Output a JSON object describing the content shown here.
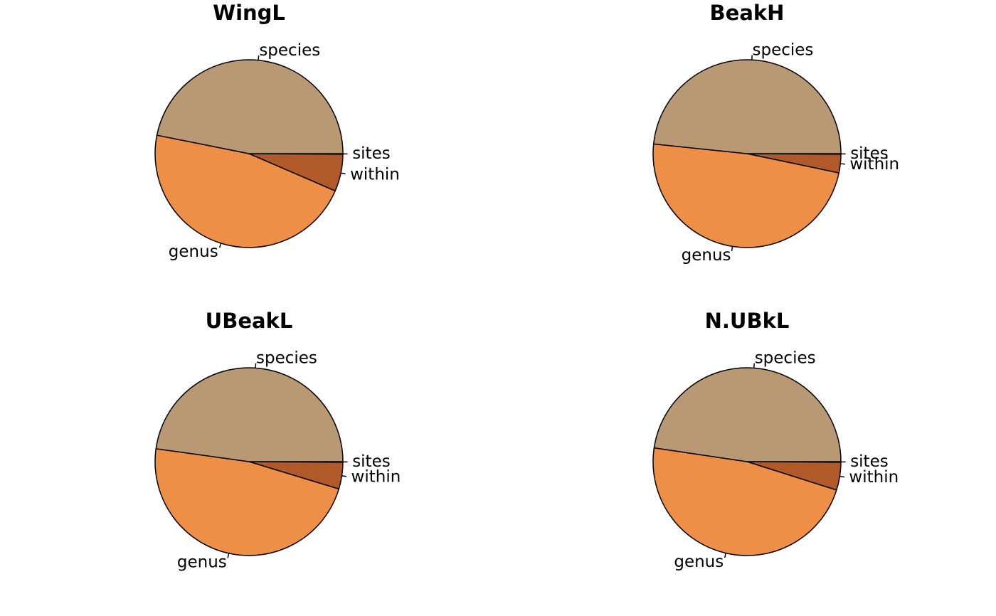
{
  "chart_data": [
    {
      "type": "pie",
      "title": "WingL",
      "categories": [
        "sites",
        "within",
        "genus",
        "species"
      ],
      "values": [
        0.1,
        6.4,
        46.7,
        46.9
      ],
      "colors": [
        "#8b4513",
        "#b05a2a",
        "#ed8f47",
        "#b89974"
      ]
    },
    {
      "type": "pie",
      "title": "BeakH",
      "categories": [
        "sites",
        "within",
        "genus",
        "species"
      ],
      "values": [
        0.1,
        3.2,
        48.4,
        48.4
      ],
      "colors": [
        "#8b4513",
        "#b05a2a",
        "#ed8f47",
        "#b89974"
      ]
    },
    {
      "type": "pie",
      "title": "UBeakL",
      "categories": [
        "sites",
        "within",
        "genus",
        "species"
      ],
      "values": [
        0.1,
        4.6,
        47.5,
        47.8
      ],
      "colors": [
        "#8b4513",
        "#b05a2a",
        "#ed8f47",
        "#b89974"
      ]
    },
    {
      "type": "pie",
      "title": "N.UBkL",
      "categories": [
        "sites",
        "within",
        "genus",
        "species"
      ],
      "values": [
        0.1,
        4.8,
        47.5,
        47.7
      ],
      "colors": [
        "#8b4513",
        "#b05a2a",
        "#ed8f47",
        "#b89974"
      ]
    }
  ]
}
